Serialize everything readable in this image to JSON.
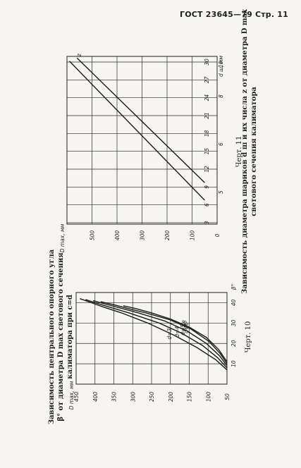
{
  "page_header": "ГОСТ 23645—79 Стр. 11",
  "chart_data": [
    {
      "type": "line",
      "figure_label": "Черт. 10",
      "caption_lines": [
        "Зависимость центрального опорного угла",
        "β° от диаметра D max светового сечения",
        "калиматора при c=d"
      ],
      "ylabel": "D max, мм",
      "xlabel": "β°",
      "xlim": [
        0,
        45
      ],
      "ylim": [
        50,
        450
      ],
      "x_ticks": [
        10,
        20,
        30,
        40
      ],
      "x_tick_labels": [
        "10",
        "20",
        "30",
        "40"
      ],
      "y_ticks": [
        50,
        100,
        150,
        200,
        250,
        300,
        350,
        400,
        450
      ],
      "y_tick_labels": [
        "50",
        "100",
        "150",
        "200",
        "250",
        "300",
        "350",
        "400",
        "450"
      ],
      "grid": true,
      "series": [
        {
          "name": "d=3",
          "x": [
            7,
            12,
            18,
            24,
            30,
            35,
            38,
            40,
            42
          ],
          "y": [
            50,
            80,
            130,
            190,
            260,
            330,
            380,
            410,
            440
          ]
        },
        {
          "name": "d=4",
          "x": [
            8,
            13,
            19,
            25,
            30,
            35,
            38,
            40,
            41.5
          ],
          "y": [
            50,
            75,
            115,
            170,
            230,
            310,
            365,
            400,
            425
          ]
        },
        {
          "name": "d=5",
          "x": [
            9,
            14,
            20,
            26,
            31,
            35,
            37.5,
            39.5,
            41
          ],
          "y": [
            50,
            70,
            105,
            155,
            215,
            285,
            335,
            375,
            405
          ]
        },
        {
          "name": "d=6",
          "x": [
            10,
            15,
            21,
            27,
            31.5,
            35,
            37,
            39,
            40.5
          ],
          "y": [
            50,
            68,
            98,
            145,
            200,
            265,
            310,
            350,
            385
          ]
        },
        {
          "name": "d=8",
          "x": [
            11,
            17,
            23,
            28,
            32,
            35,
            37,
            38.5
          ],
          "y": [
            50,
            72,
            105,
            150,
            200,
            250,
            290,
            325
          ]
        }
      ]
    },
    {
      "type": "line",
      "figure_label": "Черт. 11",
      "caption_lines": [
        "Зависимость диаметра шариков d ш и их числа z от диаметра D max",
        "светового сечения калиматора"
      ],
      "ylabel": "D max, мм",
      "xlabel": "d ш, мм",
      "x2label": "z",
      "xlim": [
        0,
        10.5
      ],
      "ylim": [
        0,
        600
      ],
      "x_ticks": [
        0,
        2,
        4,
        6,
        8,
        10
      ],
      "x_tick_labels": [
        "",
        "",
        "",
        "",
        "",
        ""
      ],
      "x_tick_labels_shown": [
        "5",
        "6",
        "8",
        "10"
      ],
      "x_tick_labels_shown_at": [
        2,
        5,
        8,
        10
      ],
      "z_ticks": [
        3,
        6,
        9,
        12,
        15,
        18,
        21,
        24,
        27,
        30
      ],
      "z_tick_labels": [
        "3",
        "6",
        "9",
        "12",
        "15",
        "18",
        "21",
        "24",
        "27",
        "30"
      ],
      "y_ticks": [
        0,
        100,
        200,
        300,
        400,
        500
      ],
      "y_tick_labels": [
        "0",
        "100",
        "200",
        "300",
        "400",
        "500"
      ],
      "grid": true,
      "series": [
        {
          "name": "d ш",
          "x": [
            1.5,
            10.2
          ],
          "y": [
            50,
            590
          ]
        },
        {
          "name": "z",
          "x": [
            2.6,
            10.4
          ],
          "y": [
            50,
            560
          ]
        }
      ],
      "line_label": "z"
    }
  ]
}
